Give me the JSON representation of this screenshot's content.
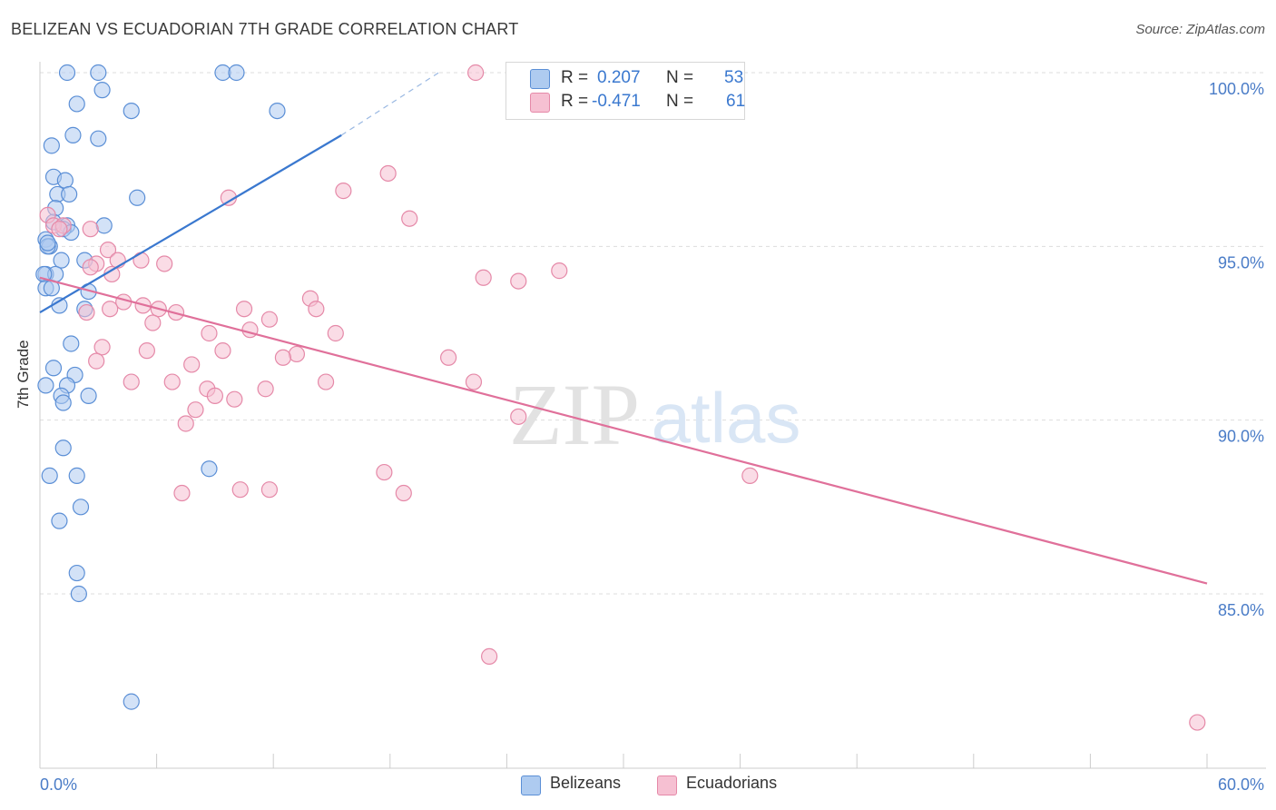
{
  "title": "BELIZEAN VS ECUADORIAN 7TH GRADE CORRELATION CHART",
  "source": "Source: ZipAtlas.com",
  "watermark": {
    "zip": "ZIP",
    "atlas": "atlas"
  },
  "legend": {
    "belizeans": {
      "r_label": "R =",
      "r_value": "0.207",
      "n_label": "N =",
      "n_value": "53"
    },
    "ecuadorians": {
      "r_label": "R =",
      "r_value": "-0.471",
      "n_label": "N =",
      "n_value": "61"
    }
  },
  "bottom_legend": {
    "belizeans": "Belizeans",
    "ecuadorians": "Ecuadorians"
  },
  "colors": {
    "blue_fill": "#aecbf0",
    "blue_stroke": "#5b8fd6",
    "blue_line": "#3a78cf",
    "pink_fill": "#f6c0d2",
    "pink_stroke": "#e589a8",
    "pink_line": "#e0709a",
    "tick_label": "#4a7cc7"
  },
  "chart_data": {
    "type": "scatter",
    "title": "BELIZEAN VS ECUADORIAN 7TH GRADE CORRELATION CHART",
    "xlabel": "",
    "ylabel": "7th Grade",
    "xlim": [
      0,
      60
    ],
    "ylim": [
      80.5,
      101.0
    ],
    "x_tick_labels": [
      "0.0%",
      "60.0%"
    ],
    "y_ticks": [
      85,
      90,
      95,
      100
    ],
    "y_tick_labels": [
      "85.0%",
      "90.0%",
      "95.0%",
      "100.0%"
    ],
    "grid": true,
    "legend_position": "top-center",
    "series": [
      {
        "name": "Belizeans",
        "r": 0.207,
        "n": 53,
        "trend": {
          "x": [
            0,
            15.5
          ],
          "y": [
            93.1,
            98.2
          ],
          "dashed_to": {
            "x": 20.5,
            "y": 100.0
          }
        },
        "points": [
          [
            1.4,
            100.0
          ],
          [
            3.0,
            100.0
          ],
          [
            9.4,
            100.0
          ],
          [
            10.1,
            100.0
          ],
          [
            3.2,
            99.5
          ],
          [
            1.9,
            99.1
          ],
          [
            4.7,
            98.9
          ],
          [
            12.2,
            98.9
          ],
          [
            1.7,
            98.2
          ],
          [
            3.0,
            98.1
          ],
          [
            0.6,
            97.9
          ],
          [
            0.7,
            97.0
          ],
          [
            1.3,
            96.9
          ],
          [
            0.9,
            96.5
          ],
          [
            1.5,
            96.5
          ],
          [
            5.0,
            96.4
          ],
          [
            0.8,
            96.1
          ],
          [
            0.7,
            95.7
          ],
          [
            1.4,
            95.6
          ],
          [
            3.3,
            95.6
          ],
          [
            0.3,
            95.2
          ],
          [
            1.2,
            95.5
          ],
          [
            0.5,
            95.0
          ],
          [
            0.4,
            95.0
          ],
          [
            1.1,
            94.6
          ],
          [
            2.3,
            94.6
          ],
          [
            0.3,
            94.2
          ],
          [
            0.8,
            94.2
          ],
          [
            0.2,
            94.2
          ],
          [
            0.3,
            93.8
          ],
          [
            0.6,
            93.8
          ],
          [
            2.5,
            93.7
          ],
          [
            1.0,
            93.3
          ],
          [
            2.3,
            93.2
          ],
          [
            1.6,
            92.2
          ],
          [
            0.7,
            91.5
          ],
          [
            1.8,
            91.3
          ],
          [
            1.4,
            91.0
          ],
          [
            0.3,
            91.0
          ],
          [
            1.1,
            90.7
          ],
          [
            1.2,
            90.5
          ],
          [
            2.5,
            90.7
          ],
          [
            1.2,
            89.2
          ],
          [
            8.7,
            88.6
          ],
          [
            0.5,
            88.4
          ],
          [
            1.9,
            88.4
          ],
          [
            2.1,
            87.5
          ],
          [
            1.0,
            87.1
          ],
          [
            1.9,
            85.6
          ],
          [
            2.0,
            85.0
          ],
          [
            4.7,
            81.9
          ],
          [
            1.6,
            95.4
          ],
          [
            0.4,
            95.1
          ]
        ]
      },
      {
        "name": "Ecuadorians",
        "r": -0.471,
        "n": 61,
        "trend": {
          "x": [
            0,
            60
          ],
          "y": [
            94.1,
            85.3
          ]
        },
        "points": [
          [
            22.4,
            100.0
          ],
          [
            0.4,
            95.9
          ],
          [
            0.7,
            95.6
          ],
          [
            1.2,
            95.6
          ],
          [
            1.0,
            95.5
          ],
          [
            17.9,
            97.1
          ],
          [
            15.6,
            96.6
          ],
          [
            9.7,
            96.4
          ],
          [
            19.0,
            95.8
          ],
          [
            3.5,
            94.9
          ],
          [
            4.0,
            94.6
          ],
          [
            5.2,
            94.6
          ],
          [
            6.4,
            94.5
          ],
          [
            2.9,
            94.5
          ],
          [
            2.6,
            94.4
          ],
          [
            3.7,
            94.2
          ],
          [
            22.8,
            94.1
          ],
          [
            24.6,
            94.0
          ],
          [
            26.7,
            94.3
          ],
          [
            4.3,
            93.4
          ],
          [
            5.3,
            93.3
          ],
          [
            6.1,
            93.2
          ],
          [
            7.0,
            93.1
          ],
          [
            10.5,
            93.2
          ],
          [
            13.9,
            93.5
          ],
          [
            14.2,
            93.2
          ],
          [
            2.4,
            93.1
          ],
          [
            5.8,
            92.8
          ],
          [
            11.8,
            92.9
          ],
          [
            8.7,
            92.5
          ],
          [
            10.8,
            92.6
          ],
          [
            15.2,
            92.5
          ],
          [
            3.2,
            92.1
          ],
          [
            5.5,
            92.0
          ],
          [
            9.4,
            92.0
          ],
          [
            13.2,
            91.9
          ],
          [
            12.5,
            91.8
          ],
          [
            21.0,
            91.8
          ],
          [
            2.9,
            91.7
          ],
          [
            7.8,
            91.6
          ],
          [
            4.7,
            91.1
          ],
          [
            6.8,
            91.1
          ],
          [
            8.6,
            90.9
          ],
          [
            11.6,
            90.9
          ],
          [
            14.7,
            91.1
          ],
          [
            22.3,
            91.1
          ],
          [
            9.0,
            90.7
          ],
          [
            10.0,
            90.6
          ],
          [
            8.0,
            90.3
          ],
          [
            7.5,
            89.9
          ],
          [
            24.6,
            90.1
          ],
          [
            17.7,
            88.5
          ],
          [
            36.5,
            88.4
          ],
          [
            7.3,
            87.9
          ],
          [
            10.3,
            88.0
          ],
          [
            11.8,
            88.0
          ],
          [
            18.7,
            87.9
          ],
          [
            23.1,
            83.2
          ],
          [
            59.5,
            81.3
          ],
          [
            3.6,
            93.2
          ],
          [
            2.6,
            95.5
          ]
        ]
      }
    ]
  }
}
